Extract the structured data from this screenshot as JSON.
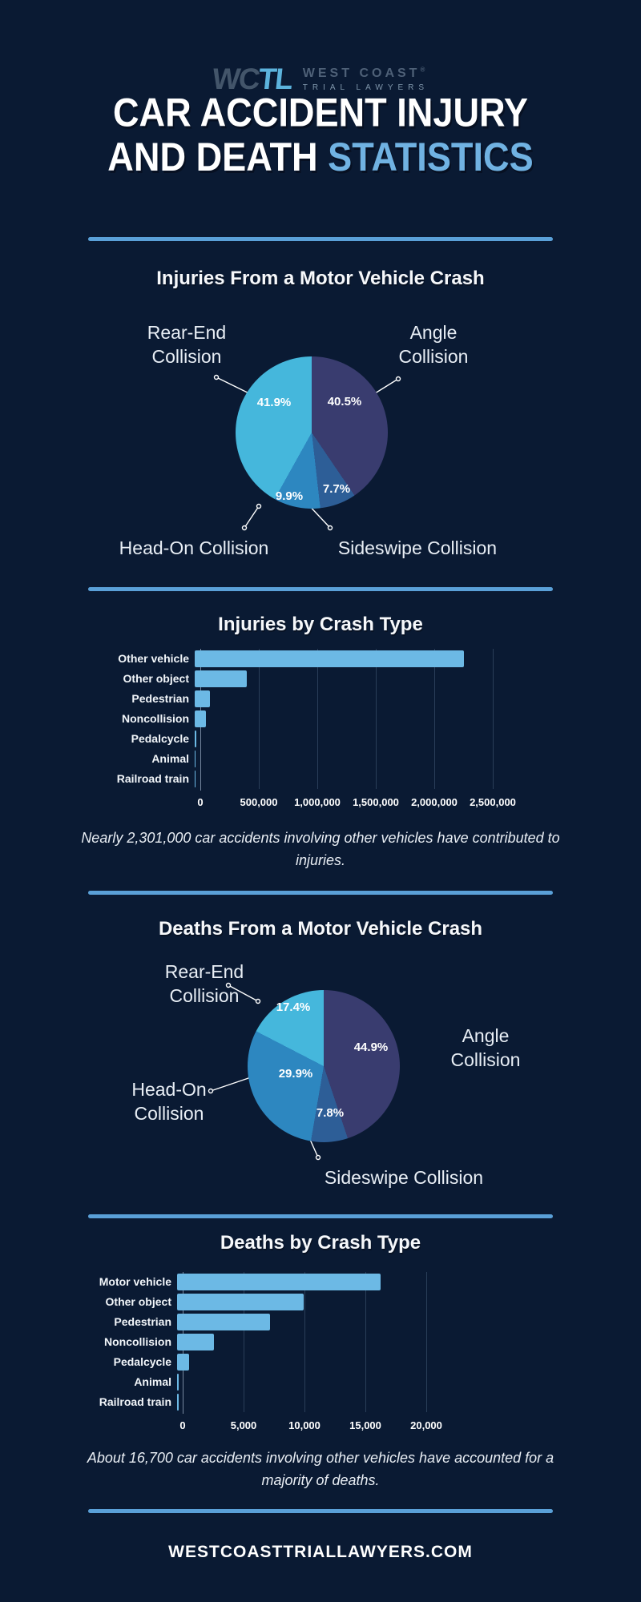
{
  "page": {
    "background": "#0a1a33",
    "accent": "#5aa0d8",
    "footer_text": "WESTCOASTTRIALLAWYERS.COM"
  },
  "header": {
    "logo_mark_primary": "WC",
    "logo_mark_accent": "TL",
    "brand_name": "WEST COAST",
    "brand_reg": "®",
    "brand_subtitle": "TRIAL LAWYERS",
    "title_line1": "CAR ACCIDENT INJURY",
    "title_line2": "AND DEATH ",
    "title_line2_accent": "STATISTICS"
  },
  "colors": {
    "bar_fill": "#6cb9e5",
    "pie_rear_end": "#45b7dc",
    "pie_angle": "#393c6f",
    "pie_head_on": "#2d87c0",
    "pie_sideswipe": "#2d5e97"
  },
  "chart_data": [
    {
      "type": "pie",
      "title": "Injuries From a Motor Vehicle Crash",
      "slices": [
        {
          "label": "Angle Collision",
          "value": 40.5,
          "pct": "40.5%",
          "color": "#393c6f"
        },
        {
          "label": "Sideswipe Collision",
          "value": 7.7,
          "pct": "7.7%",
          "color": "#2d5e97"
        },
        {
          "label": "Head-On Collision",
          "value": 9.9,
          "pct": "9.9%",
          "color": "#2d87c0"
        },
        {
          "label": "Rear-End Collision",
          "value": 41.9,
          "pct": "41.9%",
          "color": "#45b7dc"
        }
      ]
    },
    {
      "type": "bar",
      "title": "Injuries by Crash Type",
      "categories": [
        "Other vehicle",
        "Other object",
        "Pedestrian",
        "Noncollision",
        "Pedalcycle",
        "Animal",
        "Railroad train"
      ],
      "values": [
        2301000,
        443000,
        130000,
        97000,
        15000,
        3000,
        1000
      ],
      "xlim": [
        0,
        2500000
      ],
      "ticks": [
        "0",
        "500,000",
        "1,000,000",
        "1,500,000",
        "2,000,000",
        "2,500,000"
      ],
      "caption": "Nearly 2,301,000 car accidents involving other vehicles have contributed to injuries."
    },
    {
      "type": "pie",
      "title": "Deaths From a Motor Vehicle Crash",
      "slices": [
        {
          "label": "Angle Collision",
          "value": 44.9,
          "pct": "44.9%",
          "color": "#393c6f"
        },
        {
          "label": "Sideswipe Collision",
          "value": 7.8,
          "pct": "7.8%",
          "color": "#2d5e97"
        },
        {
          "label": "Head-On Collision",
          "value": 29.9,
          "pct": "29.9%",
          "color": "#2d87c0"
        },
        {
          "label": "Rear-End Collision",
          "value": 17.4,
          "pct": "17.4%",
          "color": "#45b7dc"
        }
      ]
    },
    {
      "type": "bar",
      "title": "Deaths by Crash Type",
      "categories": [
        "Motor vehicle",
        "Other object",
        "Pedestrian",
        "Noncollision",
        "Pedalcycle",
        "Animal",
        "Railroad train"
      ],
      "values": [
        16700,
        10400,
        7600,
        3000,
        1000,
        150,
        100
      ],
      "xlim": [
        0,
        20000
      ],
      "ticks": [
        "0",
        "5,000",
        "10,000",
        "15,000",
        "20,000"
      ],
      "caption": "About 16,700 car accidents involving other vehicles have accounted for a majority of deaths."
    }
  ]
}
